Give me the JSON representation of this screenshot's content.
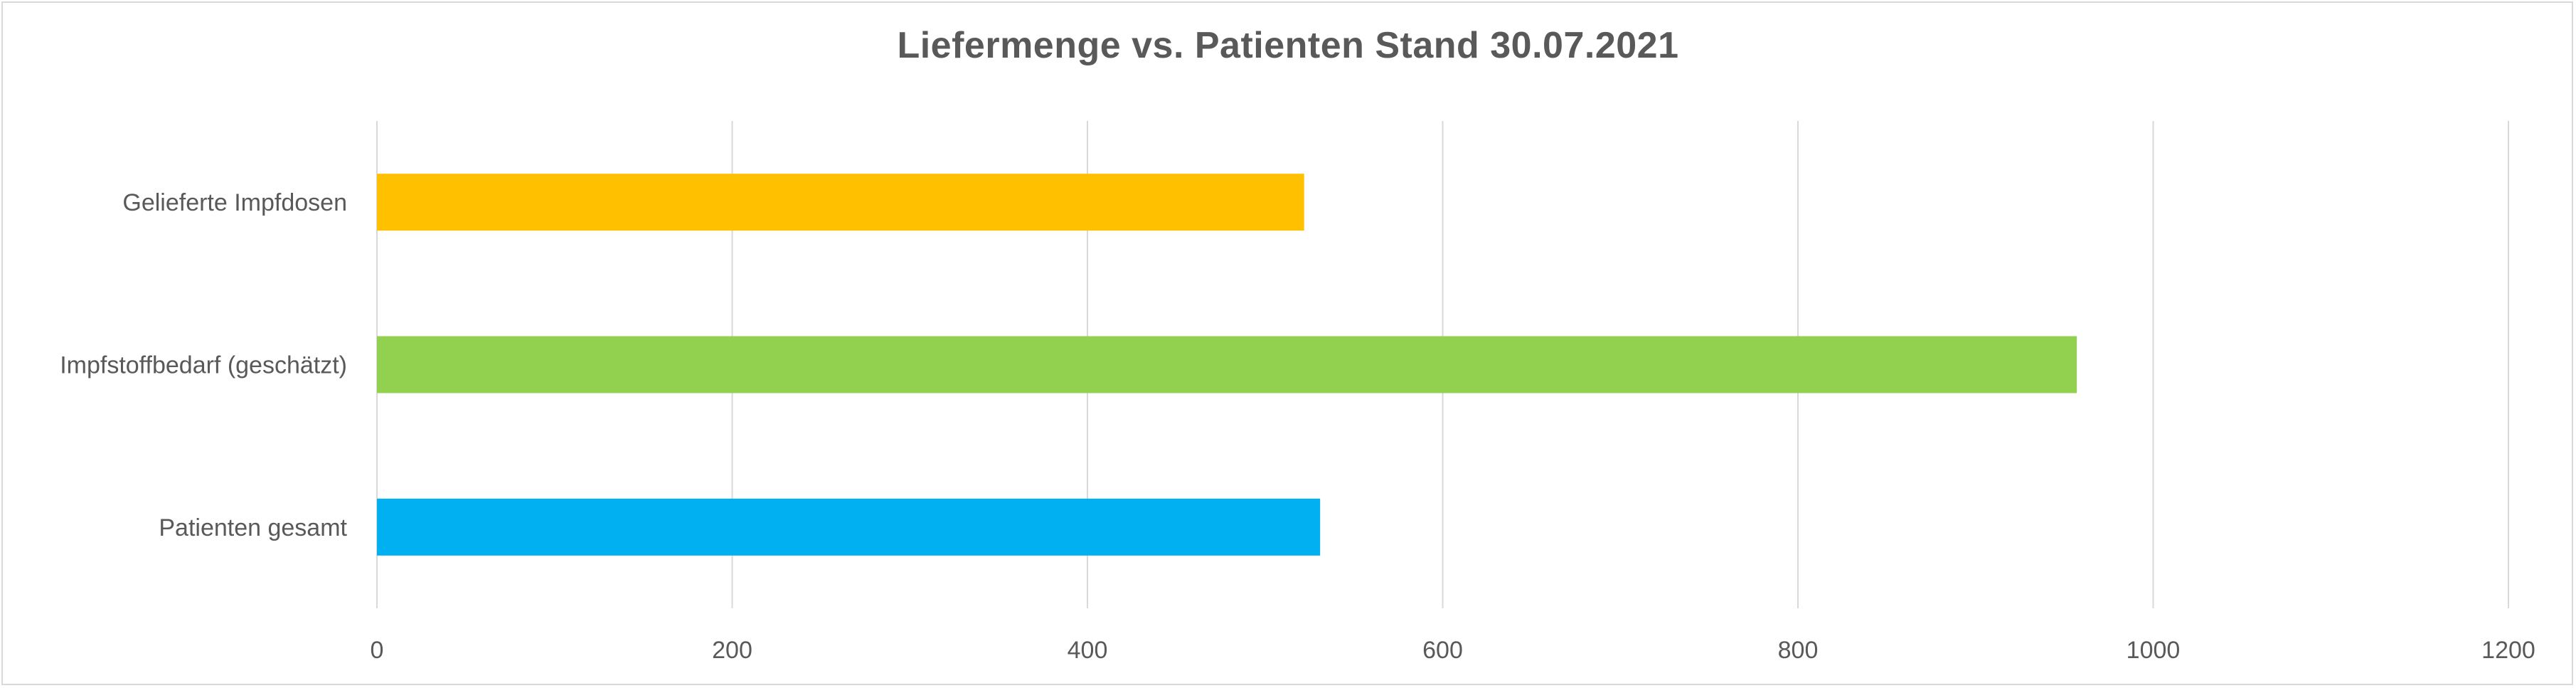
{
  "chart_data": {
    "type": "bar",
    "orientation": "horizontal",
    "title": "Liefermenge vs. Patienten Stand 30.07.2021",
    "categories": [
      "Gelieferte Impfdosen",
      "Impfstoffbedarf (geschätzt)",
      "Patienten gesamt"
    ],
    "values": [
      522,
      957,
      531
    ],
    "colors": [
      "#FFC000",
      "#92D050",
      "#00B0F0"
    ],
    "xlim": [
      0,
      1200
    ],
    "xticks": [
      0,
      200,
      400,
      600,
      800,
      1000,
      1200
    ],
    "xlabel": "",
    "ylabel": "",
    "grid": "vertical",
    "legend": "none"
  }
}
